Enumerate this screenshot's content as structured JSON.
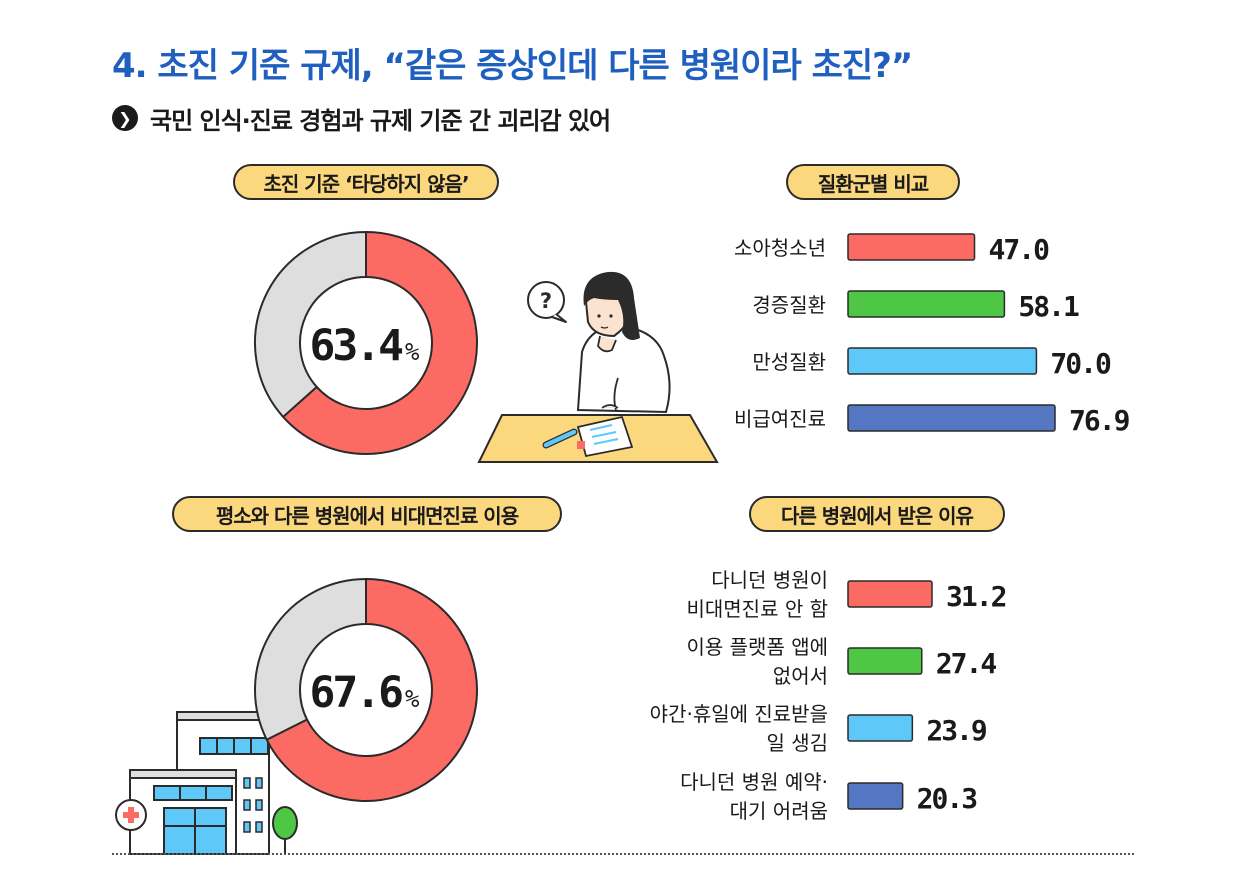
{
  "header": {
    "title": "4. 초진 기준 규제, “같은 증상인데 다른 병원이라 초진?”",
    "subtitle": "국민 인식·진료 경험과 규제 기준 간 괴리감 있어"
  },
  "colors": {
    "accent_red": "#fc6a64",
    "gray": "#dedede",
    "green": "#4dc744",
    "sky": "#5ec9f8",
    "blue": "#5577c3",
    "pill": "#fbd77e",
    "title_blue": "#1f5fbf"
  },
  "panels": {
    "donut1_label": "초진 기준 ‘타당하지 않음’",
    "donut2_label": "평소와 다른 병원에서 비대면진료 이용",
    "bars1_label": "질환군별 비교",
    "bars2_label": "다른 병원에서 받은 이유"
  },
  "illustrations": [
    "question-bubble-icon",
    "thinking-woman",
    "desk-with-prescription",
    "hospital-building-icon",
    "tree-icon"
  ],
  "chart_data": [
    {
      "type": "pie",
      "title": "초진 기준 ‘타당하지 않음’",
      "value": 63.4,
      "value_text": "63.4",
      "unit": "%"
    },
    {
      "type": "pie",
      "title": "평소와 다른 병원에서 비대면진료 이용",
      "value": 67.6,
      "value_text": "67.6",
      "unit": "%"
    },
    {
      "type": "bar",
      "title": "질환군별 비교",
      "categories": [
        "소아청소년",
        "경증질환",
        "만성질환",
        "비급여진료"
      ],
      "values": [
        47.0,
        58.1,
        70.0,
        76.9
      ],
      "labels": [
        "47.0",
        "58.1",
        "70.0",
        "76.9"
      ]
    },
    {
      "type": "bar",
      "title": "다른 병원에서 받은 이유",
      "categories": [
        [
          "다니던 병원이",
          "비대면진료 안 함"
        ],
        [
          "이용 플랫폼 앱에",
          "없어서"
        ],
        [
          "야간·휴일에 진료받을",
          "일 생김"
        ],
        [
          "다니던 병원 예약·",
          "대기 어려움"
        ]
      ],
      "values": [
        31.2,
        27.4,
        23.9,
        20.3
      ],
      "labels": [
        "31.2",
        "27.4",
        "23.9",
        "20.3"
      ]
    }
  ]
}
